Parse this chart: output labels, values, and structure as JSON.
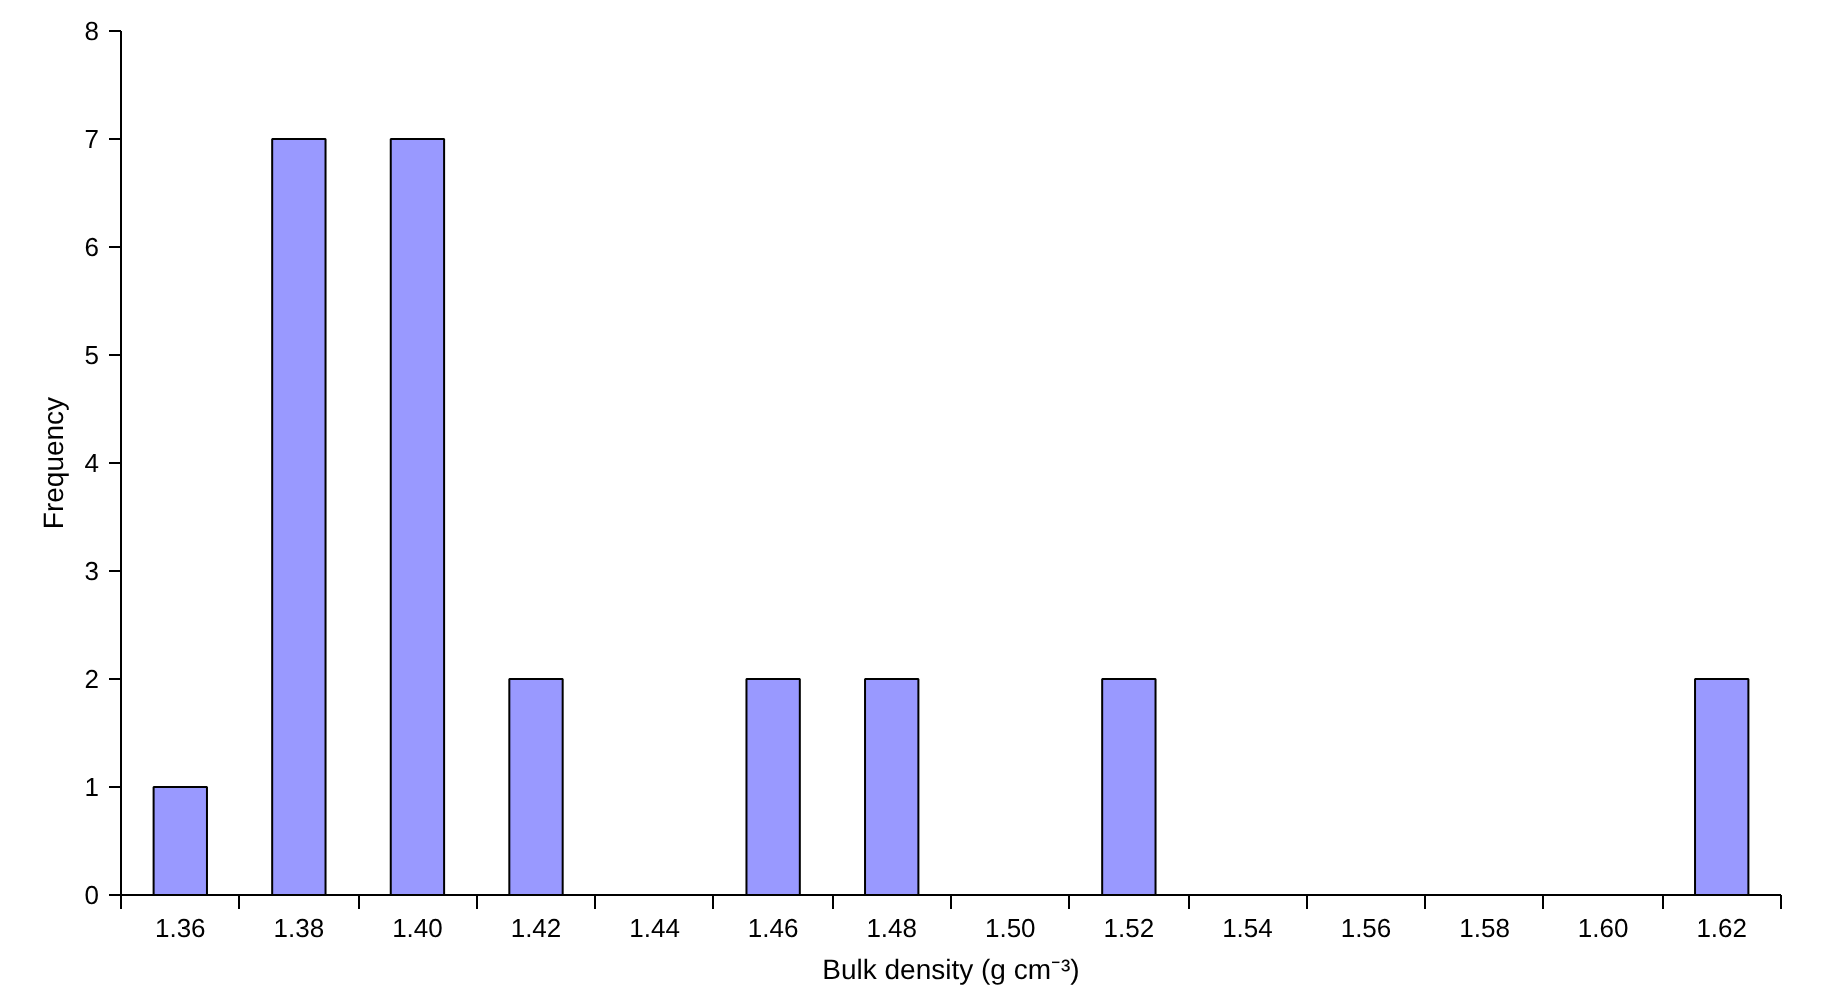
{
  "chart_data": {
    "type": "bar",
    "xlabel": "Bulk density (g cm⁻³)",
    "ylabel": "Frequency",
    "categories": [
      "1.36",
      "1.38",
      "1.40",
      "1.42",
      "1.44",
      "1.46",
      "1.48",
      "1.50",
      "1.52",
      "1.54",
      "1.56",
      "1.58",
      "1.60",
      "1.62"
    ],
    "values": [
      1,
      7,
      7,
      2,
      0,
      2,
      2,
      0,
      2,
      0,
      0,
      0,
      0,
      2
    ],
    "color": "#9999ff",
    "ylim": [
      0,
      8
    ],
    "yticks": [
      0,
      1,
      2,
      3,
      4,
      5,
      6,
      7,
      8
    ],
    "grid": false
  }
}
